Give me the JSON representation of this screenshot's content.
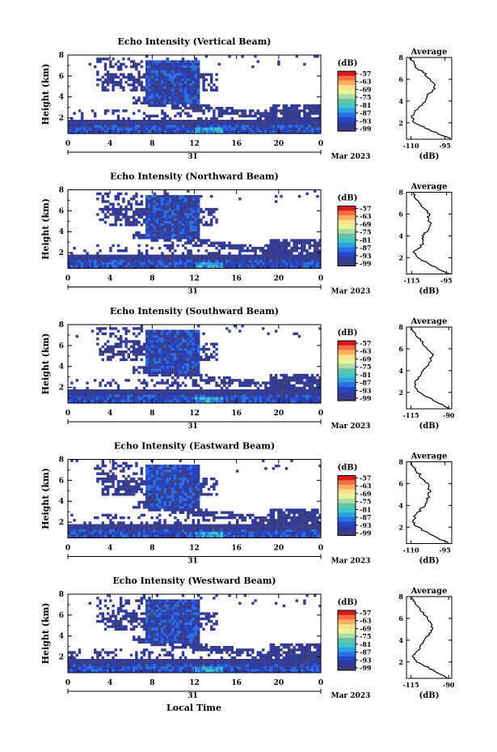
{
  "figure": {
    "xlabel": "Local Time",
    "date_label": "Mar 2023",
    "day_label": "31",
    "colorbar_unit": "(dB)",
    "colorbar_ticks": [
      "-57",
      "-63",
      "-69",
      "-75",
      "-81",
      "-87",
      "-93",
      "-99"
    ],
    "colorbar_colors": [
      "#d7191c",
      "#f46d43",
      "#fdae61",
      "#fee08b",
      "#e6f598",
      "#abdda4",
      "#66c2a5",
      "#3ec7c7",
      "#2fa0e0",
      "#2b6fe0",
      "#2446c8",
      "#2e3a9e",
      "#3a3d80"
    ],
    "average_title": "Average",
    "average_xlabel": "(dB)"
  },
  "chart_data": [
    {
      "type": "heatmap",
      "title": "Echo Intensity (Vertical Beam)",
      "ylabel": "Height (km)",
      "x_ticks": [
        "0",
        "4",
        "8",
        "12",
        "16",
        "20",
        "0"
      ],
      "xlim": [
        0,
        24
      ],
      "y_ticks": [
        "2",
        "4",
        "6",
        "8"
      ],
      "ylim": [
        0.5,
        8
      ],
      "profile": {
        "xlim": [
          -112,
          -92
        ],
        "x_tick_labels": [
          "-110",
          "-95"
        ],
        "x_tick_values": [
          -110,
          -95
        ],
        "y_ticks": [
          "2",
          "4",
          "6",
          "8"
        ],
        "ylim": [
          0.5,
          8
        ],
        "height": [
          0.5,
          1.0,
          1.5,
          2.0,
          2.5,
          3.0,
          3.5,
          4.0,
          4.5,
          5.0,
          5.5,
          6.0,
          6.5,
          7.0,
          7.5,
          8.0
        ],
        "db": [
          -92,
          -98,
          -103,
          -108,
          -110,
          -108,
          -106,
          -104,
          -103,
          -100,
          -100,
          -101,
          -104,
          -107,
          -109,
          -110
        ]
      }
    },
    {
      "type": "heatmap",
      "title": "Echo Intensity (Northward Beam)",
      "ylabel": "Height (km)",
      "x_ticks": [
        "0",
        "4",
        "8",
        "12",
        "16",
        "20",
        "0"
      ],
      "xlim": [
        0,
        24
      ],
      "y_ticks": [
        "2",
        "4",
        "6",
        "8"
      ],
      "ylim": [
        0.5,
        8
      ],
      "profile": {
        "xlim": [
          -118,
          -92
        ],
        "x_tick_labels": [
          "-115",
          "-95"
        ],
        "x_tick_values": [
          -115,
          -95
        ],
        "y_ticks": [
          "2",
          "4",
          "6",
          "8"
        ],
        "ylim": [
          0.5,
          8
        ],
        "height": [
          0.5,
          1.0,
          1.5,
          2.0,
          2.5,
          3.0,
          3.5,
          4.0,
          4.5,
          5.0,
          5.5,
          6.0,
          6.5,
          7.0,
          7.5,
          8.0
        ],
        "db": [
          -93,
          -100,
          -106,
          -112,
          -114,
          -110,
          -108,
          -109,
          -106,
          -104,
          -106,
          -105,
          -108,
          -111,
          -113,
          -114
        ]
      }
    },
    {
      "type": "heatmap",
      "title": "Echo Intensity (Southward Beam)",
      "ylabel": "Height (km)",
      "x_ticks": [
        "0",
        "4",
        "8",
        "12",
        "16",
        "20",
        "0"
      ],
      "xlim": [
        0,
        24
      ],
      "y_ticks": [
        "2",
        "4",
        "6",
        "8"
      ],
      "ylim": [
        0.5,
        8
      ],
      "profile": {
        "xlim": [
          -118,
          -88
        ],
        "x_tick_labels": [
          "-115",
          "-90"
        ],
        "x_tick_values": [
          -115,
          -90
        ],
        "y_ticks": [
          "2",
          "4",
          "6",
          "8"
        ],
        "ylim": [
          0.5,
          8
        ],
        "height": [
          0.5,
          1.0,
          1.5,
          2.0,
          2.5,
          3.0,
          3.5,
          4.0,
          4.5,
          5.0,
          5.5,
          6.0,
          6.5,
          7.0,
          7.5,
          8.0
        ],
        "db": [
          -89,
          -96,
          -103,
          -110,
          -113,
          -112,
          -109,
          -107,
          -104,
          -102,
          -101,
          -104,
          -107,
          -110,
          -113,
          -115
        ]
      }
    },
    {
      "type": "heatmap",
      "title": "Echo Intensity (Eastward Beam)",
      "ylabel": "Height (km)",
      "x_ticks": [
        "0",
        "4",
        "8",
        "12",
        "16",
        "20",
        "0"
      ],
      "xlim": [
        0,
        24
      ],
      "y_ticks": [
        "2",
        "4",
        "6",
        "8"
      ],
      "ylim": [
        0.5,
        8
      ],
      "profile": {
        "xlim": [
          -112,
          -92
        ],
        "x_tick_labels": [
          "-110",
          "-95"
        ],
        "x_tick_values": [
          -110,
          -95
        ],
        "y_ticks": [
          "2",
          "4",
          "6",
          "8"
        ],
        "ylim": [
          0.5,
          8
        ],
        "height": [
          0.5,
          1.0,
          1.5,
          2.0,
          2.5,
          3.0,
          3.5,
          4.0,
          4.5,
          5.0,
          5.5,
          6.0,
          6.5,
          7.0,
          7.5,
          8.0
        ],
        "db": [
          -93,
          -98,
          -103,
          -107,
          -109,
          -108,
          -106,
          -104,
          -103,
          -102,
          -102,
          -103,
          -105,
          -107,
          -109,
          -110
        ]
      }
    },
    {
      "type": "heatmap",
      "title": "Echo Intensity (Westward Beam)",
      "ylabel": "Height (km)",
      "x_ticks": [
        "0",
        "4",
        "8",
        "12",
        "16",
        "20",
        "0"
      ],
      "xlim": [
        0,
        24
      ],
      "y_ticks": [
        "2",
        "4",
        "6",
        "8"
      ],
      "ylim": [
        0.5,
        8
      ],
      "profile": {
        "xlim": [
          -118,
          -88
        ],
        "x_tick_labels": [
          "-115",
          "-90"
        ],
        "x_tick_values": [
          -115,
          -90
        ],
        "y_ticks": [
          "2",
          "4",
          "6",
          "8"
        ],
        "ylim": [
          0.5,
          8
        ],
        "height": [
          0.5,
          1.0,
          1.5,
          2.0,
          2.5,
          3.0,
          3.5,
          4.0,
          4.5,
          5.0,
          5.5,
          6.0,
          6.5,
          7.0,
          7.5,
          8.0
        ],
        "db": [
          -90,
          -97,
          -104,
          -111,
          -114,
          -111,
          -108,
          -106,
          -103,
          -101,
          -102,
          -104,
          -107,
          -110,
          -113,
          -115
        ]
      }
    }
  ]
}
